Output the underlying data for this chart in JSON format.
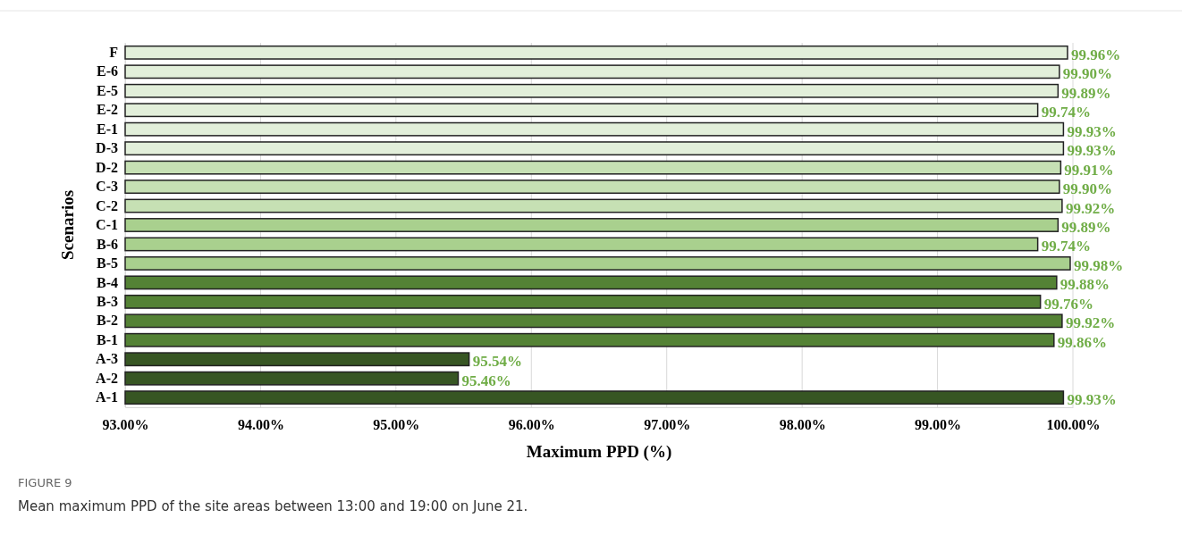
{
  "chart_data": {
    "type": "bar",
    "orientation": "horizontal",
    "xlabel": "Maximum PPD (%)",
    "ylabel": "Scenarios",
    "categories": [
      "F",
      "E-6",
      "E-5",
      "E-2",
      "E-1",
      "D-3",
      "D-2",
      "C-3",
      "C-2",
      "C-1",
      "B-6",
      "B-5",
      "B-4",
      "B-3",
      "B-2",
      "B-1",
      "A-3",
      "A-2",
      "A-1"
    ],
    "values": [
      99.96,
      99.9,
      99.89,
      99.74,
      99.93,
      99.93,
      99.91,
      99.9,
      99.92,
      99.89,
      99.74,
      99.98,
      99.88,
      99.76,
      99.92,
      99.86,
      95.54,
      95.46,
      99.93
    ],
    "colors": [
      "#e2efda",
      "#e2efda",
      "#e2efda",
      "#e2efda",
      "#e2efda",
      "#e2efda",
      "#c6e0b4",
      "#c6e0b4",
      "#c6e0b4",
      "#a9d08e",
      "#a9d08e",
      "#a9d08e",
      "#548235",
      "#548235",
      "#548235",
      "#548235",
      "#375623",
      "#375623",
      "#375623"
    ],
    "value_labels": [
      "99.96%",
      "99.90%",
      "99.89%",
      "99.74%",
      "99.93%",
      "99.93%",
      "99.91%",
      "99.90%",
      "99.92%",
      "99.89%",
      "99.74%",
      "99.98%",
      "99.88%",
      "99.76%",
      "99.92%",
      "99.86%",
      "95.54%",
      "95.46%",
      "99.93%"
    ],
    "xlim": [
      93,
      100
    ],
    "xticks": [
      {
        "value": 93,
        "label": "93.00%"
      },
      {
        "value": 94,
        "label": "94.00%"
      },
      {
        "value": 95,
        "label": "95.00%"
      },
      {
        "value": 96,
        "label": "96.00%"
      },
      {
        "value": 97,
        "label": "97.00%"
      },
      {
        "value": 98,
        "label": "98.00%"
      },
      {
        "value": 99,
        "label": "99.00%"
      },
      {
        "value": 100,
        "label": "100.00%"
      }
    ],
    "grid": "x",
    "annotations": [
      "FIGURE 9",
      "Mean maximum PPD of the site areas between 13:00 and 19:00 on June 21."
    ]
  }
}
